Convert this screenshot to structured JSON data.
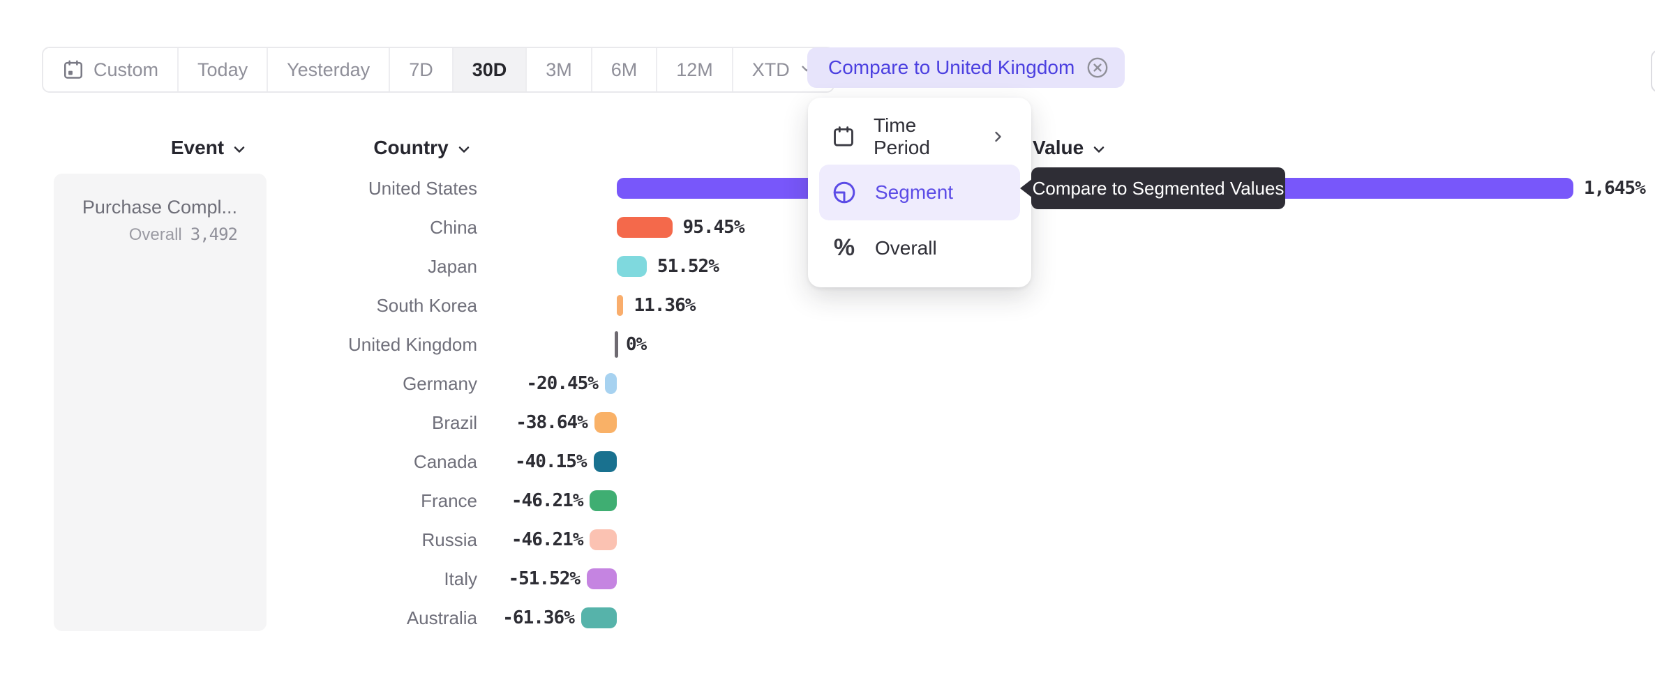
{
  "toolbar": {
    "time_range_items": [
      {
        "label": "Custom",
        "icon": "calendar"
      },
      {
        "label": "Today"
      },
      {
        "label": "Yesterday"
      },
      {
        "label": "7D"
      },
      {
        "label": "30D",
        "selected": true
      },
      {
        "label": "3M"
      },
      {
        "label": "6M"
      },
      {
        "label": "12M"
      },
      {
        "label": "XTD",
        "chevron_down": true
      }
    ],
    "compare_chip": {
      "label": "Compare to United Kingdom",
      "icon": "circle-x",
      "text_color": "#4b3fe0",
      "bg_color": "#e7e4fb"
    }
  },
  "column_headers": {
    "event": "Event",
    "country": "Country",
    "value": "Value"
  },
  "event_panel": {
    "event_name": "Purchase Compl...",
    "overall_label": "Overall",
    "overall_value": "3,492"
  },
  "dropdown_menu": {
    "items": [
      {
        "label": "Time Period",
        "icon": "calendar",
        "submenu": true
      },
      {
        "label": "Segment",
        "icon": "segment",
        "selected": true
      },
      {
        "label": "Overall",
        "icon": "percent"
      }
    ],
    "selected_color": "#5b4be6",
    "selected_bg": "#efecfd"
  },
  "tooltip": {
    "text": "Compare to Segmented Values",
    "bg_color": "#2e2d35"
  },
  "chart_data": {
    "type": "bar",
    "orientation": "horizontal",
    "title": "",
    "xlabel": "",
    "ylabel": "Country",
    "xlim": [
      -61.36,
      1645
    ],
    "baseline_value": 0,
    "grid": false,
    "legend": "none",
    "categories": [
      "United States",
      "China",
      "Japan",
      "South Korea",
      "United Kingdom",
      "Germany",
      "Brazil",
      "Canada",
      "France",
      "Russia",
      "Italy",
      "Australia"
    ],
    "values": [
      1645,
      95.45,
      51.52,
      11.36,
      0,
      -20.45,
      -38.64,
      -40.15,
      -46.21,
      -46.21,
      -51.52,
      -61.36
    ],
    "value_labels": [
      "1,645%",
      "95.45%",
      "51.52%",
      "11.36%",
      "0%",
      "-20.45%",
      "-38.64%",
      "-40.15%",
      "-46.21%",
      "-46.21%",
      "-51.52%",
      "-61.36%"
    ],
    "colors": [
      "#7857fa",
      "#f4694b",
      "#7fd9de",
      "#f9ad6c",
      "#6e6a71",
      "#a7d2f0",
      "#f9b167",
      "#19718f",
      "#3fae72",
      "#fbc2b2",
      "#c584e1",
      "#56b3aa"
    ],
    "patterned": [
      false,
      false,
      false,
      false,
      false,
      true,
      true,
      false,
      false,
      false,
      false,
      false
    ],
    "zero_tick_color": "#6e6a71"
  }
}
